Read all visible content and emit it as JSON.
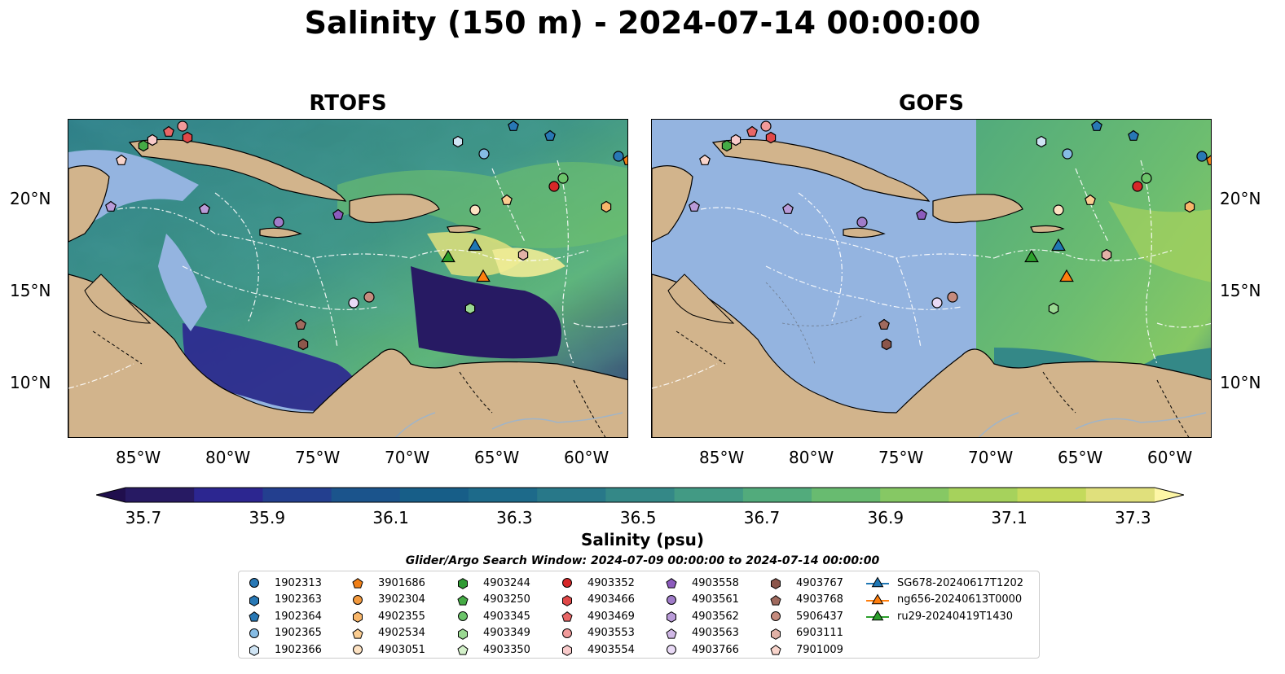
{
  "title": "Salinity (150 m) - 2024-07-14 00:00:00",
  "panels": [
    {
      "title": "RTOFS"
    },
    {
      "title": "GOFS"
    }
  ],
  "lon_ticks": [
    "85°W",
    "80°W",
    "75°W",
    "70°W",
    "65°W",
    "60°W"
  ],
  "lat_ticks": [
    "20°N",
    "15°N",
    "10°N"
  ],
  "colorbar": {
    "label": "Salinity (psu)",
    "ticks": [
      "35.7",
      "35.9",
      "36.1",
      "36.3",
      "36.5",
      "36.7",
      "36.9",
      "37.1",
      "37.3"
    ],
    "colors": [
      "#271a63",
      "#2c2690",
      "#233f8f",
      "#1b548c",
      "#175e88",
      "#1d6a8a",
      "#287889",
      "#348887",
      "#429a84",
      "#52ab7c",
      "#68bb70",
      "#86c864",
      "#a6d25c",
      "#c4da5c",
      "#e0e07c"
    ]
  },
  "legend": {
    "title": "Glider/Argo Search Window: 2024-07-09 00:00:00 to 2024-07-14 00:00:00",
    "items": [
      {
        "label": "1902313",
        "marker": "circle",
        "color": "#2878b5"
      },
      {
        "label": "1902363",
        "marker": "hexagon",
        "color": "#2878b5"
      },
      {
        "label": "1902364",
        "marker": "pentagon",
        "color": "#2878b5"
      },
      {
        "label": "1902365",
        "marker": "circle",
        "color": "#86bce4"
      },
      {
        "label": "1902366",
        "marker": "hexagon",
        "color": "#cfe4f4"
      },
      {
        "label": "3901686",
        "marker": "pentagon",
        "color": "#f07f17"
      },
      {
        "label": "3902304",
        "marker": "circle",
        "color": "#f39a3e"
      },
      {
        "label": "4902355",
        "marker": "hexagon",
        "color": "#f8b66a"
      },
      {
        "label": "4902534",
        "marker": "pentagon",
        "color": "#fbcd91"
      },
      {
        "label": "4903051",
        "marker": "circle",
        "color": "#fde2c2"
      },
      {
        "label": "4903244",
        "marker": "hexagon",
        "color": "#2f9a33"
      },
      {
        "label": "4903250",
        "marker": "pentagon",
        "color": "#45ab45"
      },
      {
        "label": "4903345",
        "marker": "circle",
        "color": "#6cc46a"
      },
      {
        "label": "4903349",
        "marker": "hexagon",
        "color": "#9ad892"
      },
      {
        "label": "4903350",
        "marker": "pentagon",
        "color": "#d3f0c9"
      },
      {
        "label": "4903352",
        "marker": "circle",
        "color": "#d62728"
      },
      {
        "label": "4903466",
        "marker": "hexagon",
        "color": "#e04848"
      },
      {
        "label": "4903469",
        "marker": "pentagon",
        "color": "#e86666"
      },
      {
        "label": "4903553",
        "marker": "circle",
        "color": "#f19a9a"
      },
      {
        "label": "4903554",
        "marker": "hexagon",
        "color": "#f8caca"
      },
      {
        "label": "4903558",
        "marker": "pentagon",
        "color": "#8c5bbd"
      },
      {
        "label": "4903561",
        "marker": "circle",
        "color": "#a07cc9"
      },
      {
        "label": "4903562",
        "marker": "hexagon",
        "color": "#b99bd8"
      },
      {
        "label": "4903563",
        "marker": "pentagon",
        "color": "#d0b8e6"
      },
      {
        "label": "4903766",
        "marker": "circle",
        "color": "#e9daf6"
      },
      {
        "label": "4903767",
        "marker": "hexagon",
        "color": "#8c564b"
      },
      {
        "label": "4903768",
        "marker": "pentagon",
        "color": "#a06a5e"
      },
      {
        "label": "5906437",
        "marker": "circle",
        "color": "#c58b7e"
      },
      {
        "label": "6903111",
        "marker": "hexagon",
        "color": "#e2b1a6"
      },
      {
        "label": "7901009",
        "marker": "pentagon",
        "color": "#f8d4cb"
      },
      {
        "label": "SG678-20240617T1202",
        "marker": "triangle",
        "color": "#1f77b4"
      },
      {
        "label": "ng656-20240613T0000",
        "marker": "triangle",
        "color": "#ff7f0e"
      },
      {
        "label": "ru29-20240419T1430",
        "marker": "triangle",
        "color": "#2ca02c"
      }
    ]
  },
  "colors": {
    "land": "#d2b48c",
    "shallow_water": "#94b4e0",
    "gofs_mask": "#94b4e0"
  }
}
